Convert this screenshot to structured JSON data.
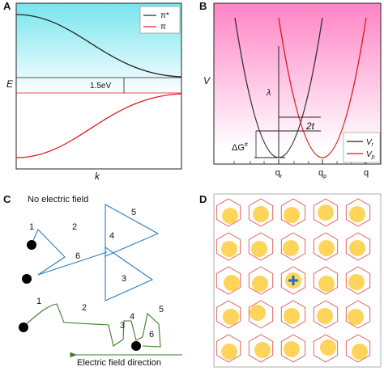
{
  "panel_labels": {
    "a": "A",
    "b": "B",
    "c": "C",
    "d": "D"
  },
  "panel_a": {
    "y_axis_label": "E",
    "x_axis_label": "k",
    "legend": [
      {
        "label": "π*",
        "color": "#222222"
      },
      {
        "label": "π",
        "color": "#e0161b"
      }
    ],
    "gap_label": "1.5eV",
    "background_top_color": "#76e5ee"
  },
  "panel_b": {
    "y_axis_label": "V",
    "lambda_label": "λ",
    "t_label": "2t",
    "dg_label": "ΔG",
    "dg_sup": "#",
    "ticks": [
      {
        "base": "q",
        "sub": "r"
      },
      {
        "base": "q",
        "sub": "p"
      },
      {
        "base": "q",
        "sub": ""
      }
    ],
    "legend": [
      {
        "base": "V",
        "sub": "r",
        "color": "#222222"
      },
      {
        "base": "V",
        "sub": "p",
        "color": "#e0161b"
      }
    ],
    "background_top_color": "#ff84c6"
  },
  "panel_c": {
    "title": "No electric field",
    "steps_top": [
      "1",
      "2",
      "3",
      "4",
      "5",
      "6"
    ],
    "steps_bottom": [
      "1",
      "2",
      "3",
      "4",
      "5",
      "6"
    ],
    "field_label": "Electric field direction",
    "colors": {
      "top_path": "#2a7ec4",
      "bottom_path": "#3c7a2a"
    }
  },
  "panel_d": {
    "rows": 5,
    "cols": 5,
    "colors": {
      "hexagon": "#e2534f",
      "circle": "#ffd45b",
      "plus": "#1f6fc0"
    }
  }
}
